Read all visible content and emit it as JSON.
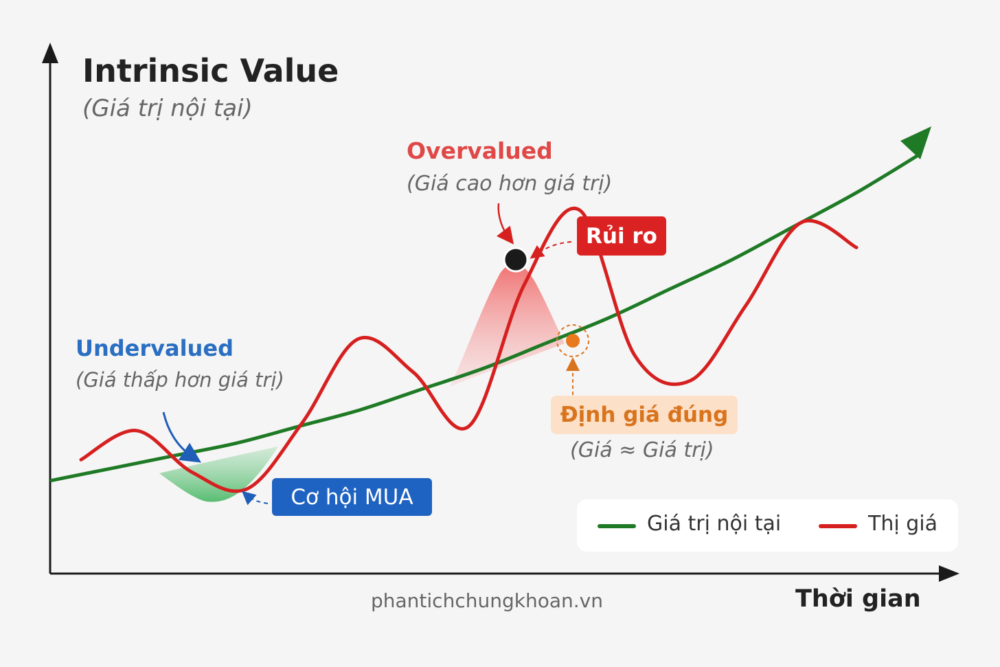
{
  "chart_data": {
    "type": "line",
    "title": "Intrinsic Value",
    "subtitle": "(Giá trị nội tại)",
    "xlabel": "Thời gian",
    "ylabel": "",
    "x": [
      0,
      1,
      2,
      3,
      4,
      5,
      6,
      7,
      8,
      9,
      10,
      11,
      12,
      13,
      14
    ],
    "series": [
      {
        "name": "Giá trị nội tại",
        "color": "#1f7a26",
        "values": [
          2.0,
          2.3,
          2.6,
          2.9,
          3.3,
          3.7,
          4.2,
          4.7,
          5.3,
          5.9,
          6.6,
          7.3,
          8.1,
          8.9,
          9.8
        ]
      },
      {
        "name": "Thị giá",
        "color": "#d62020",
        "values": [
          2.5,
          3.2,
          2.2,
          1.8,
          3.4,
          5.4,
          4.6,
          3.3,
          6.7,
          8.5,
          5.0,
          4.4,
          6.2,
          8.2,
          7.6
        ]
      }
    ],
    "legend": {
      "position": "bottom-right",
      "items": [
        "Giá trị nội tại",
        "Thị giá"
      ]
    },
    "annotations": {
      "overvalued": {
        "label": "Overvalued",
        "sub": "(Giá cao hơn giá trị)"
      },
      "risk": {
        "label": "Rủi ro"
      },
      "undervalued": {
        "label": "Undervalued",
        "sub": "(Giá thấp hơn giá trị)"
      },
      "buy": {
        "label": "Cơ hội MUA"
      },
      "fair": {
        "label": "Định giá đúng",
        "sub": "(Giá ≈ Giá trị)"
      }
    },
    "grid": false
  },
  "watermark": "phantichchungkhoan.vn",
  "colors": {
    "intrinsic": "#1f7a26",
    "market": "#d62020",
    "undervalued": "#2a6fc2",
    "overvalued": "#e04848",
    "fair": "#d9741e"
  }
}
